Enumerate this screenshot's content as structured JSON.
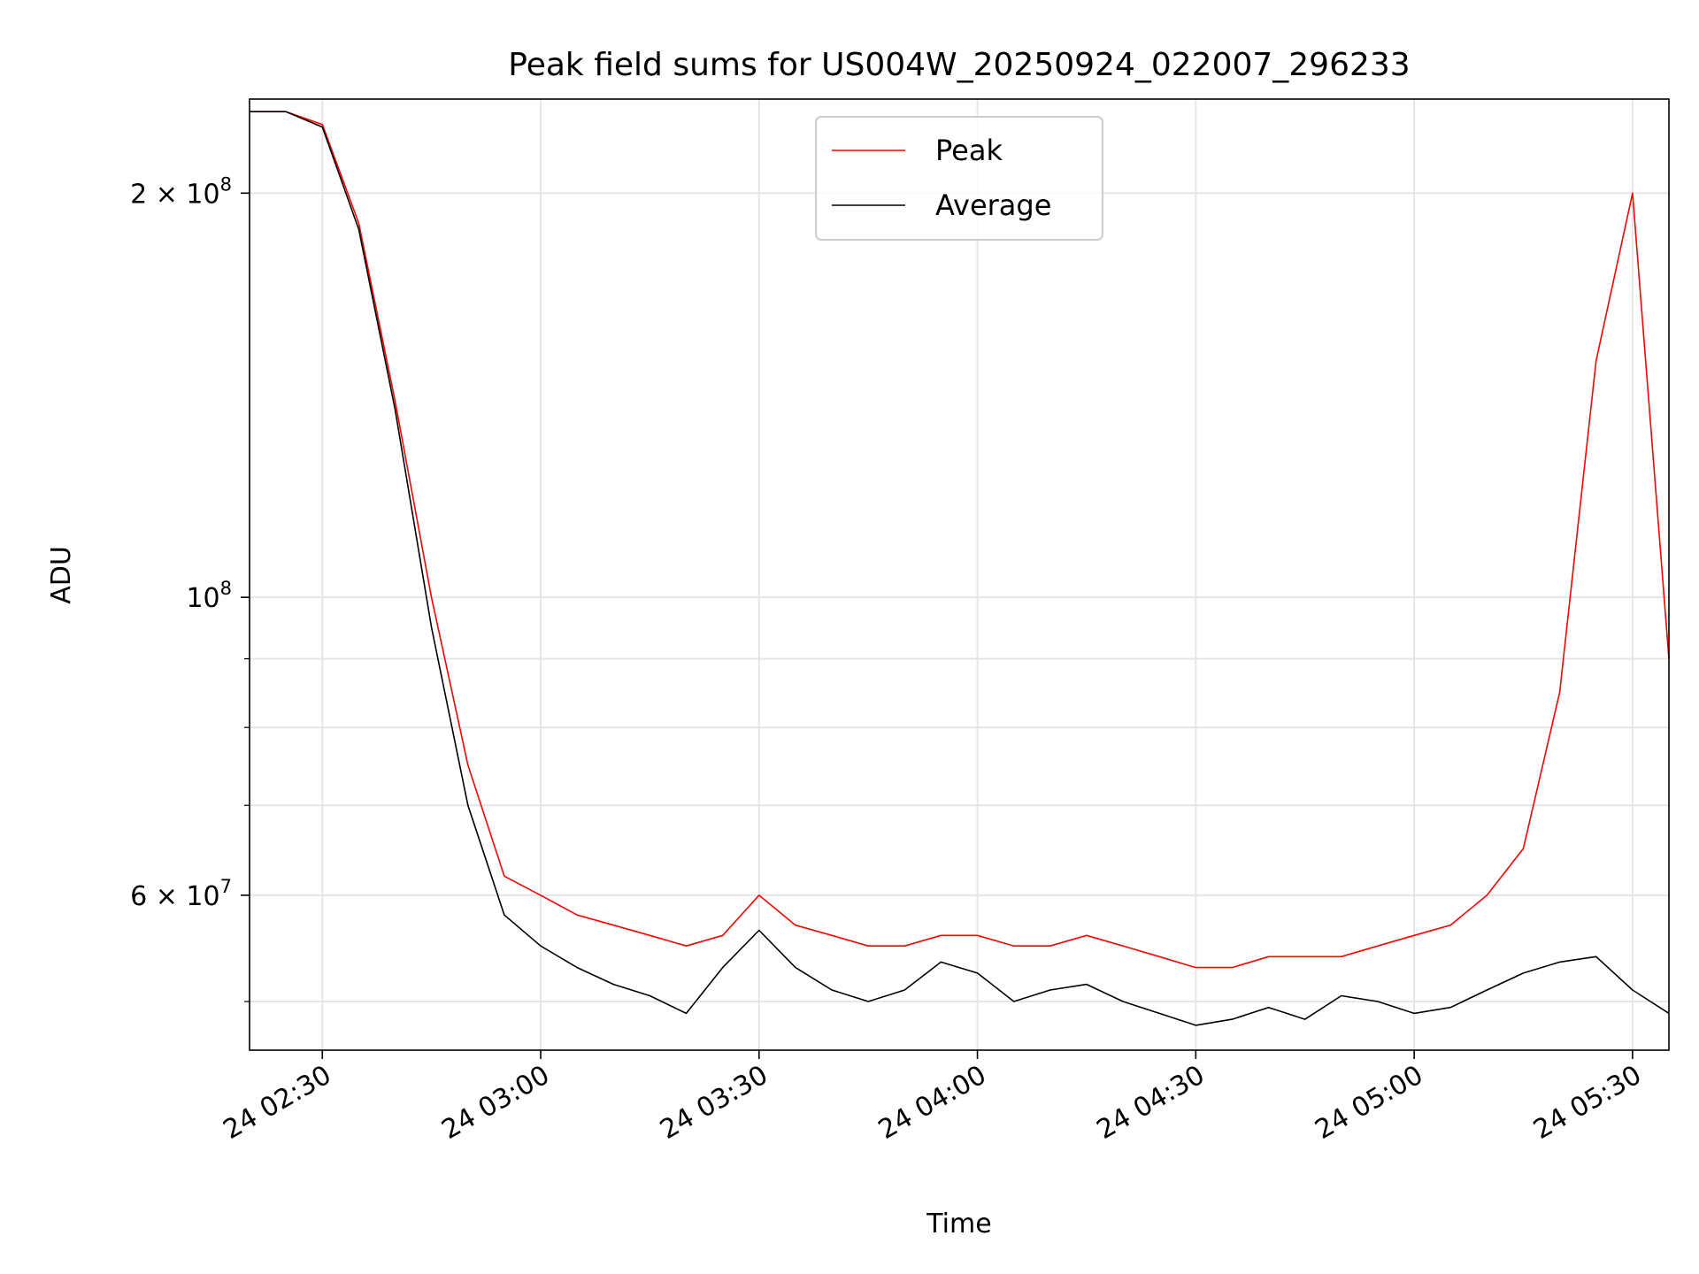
{
  "chart_data": {
    "type": "line",
    "title": "Peak field sums for US004W_20250924_022007_296233",
    "xlabel": "Time",
    "ylabel": "ADU",
    "y_scale": "log",
    "grid": true,
    "legend_position": "top-center",
    "xlim": [
      "2025-09-24 02:20",
      "2025-09-24 05:35"
    ],
    "ylim": [
      46000000,
      235000000
    ],
    "x_ticks": [
      {
        "value": "2025-09-24 02:30",
        "label": "24 02:30"
      },
      {
        "value": "2025-09-24 03:00",
        "label": "24 03:00"
      },
      {
        "value": "2025-09-24 03:30",
        "label": "24 03:30"
      },
      {
        "value": "2025-09-24 04:00",
        "label": "24 04:00"
      },
      {
        "value": "2025-09-24 04:30",
        "label": "24 04:30"
      },
      {
        "value": "2025-09-24 05:00",
        "label": "24 05:00"
      },
      {
        "value": "2025-09-24 05:30",
        "label": "24 05:30"
      }
    ],
    "y_major_ticks": [
      {
        "value": 60000000,
        "base": "6",
        "sep": "×",
        "pow": "10",
        "exp": "7"
      },
      {
        "value": 100000000,
        "base": "",
        "sep": "",
        "pow": "10",
        "exp": "8"
      },
      {
        "value": 200000000,
        "base": "2",
        "sep": "×",
        "pow": "10",
        "exp": "8"
      }
    ],
    "y_minor_ticks": [
      50000000,
      70000000,
      80000000,
      90000000
    ],
    "series": [
      {
        "name": "Peak",
        "color": "#ff0000",
        "x": [
          "2025-09-24 02:20",
          "2025-09-24 02:25",
          "2025-09-24 02:30",
          "2025-09-24 02:35",
          "2025-09-24 02:40",
          "2025-09-24 02:45",
          "2025-09-24 02:50",
          "2025-09-24 02:55",
          "2025-09-24 03:00",
          "2025-09-24 03:05",
          "2025-09-24 03:10",
          "2025-09-24 03:15",
          "2025-09-24 03:20",
          "2025-09-24 03:25",
          "2025-09-24 03:30",
          "2025-09-24 03:35",
          "2025-09-24 03:40",
          "2025-09-24 03:45",
          "2025-09-24 03:50",
          "2025-09-24 03:55",
          "2025-09-24 04:00",
          "2025-09-24 04:05",
          "2025-09-24 04:10",
          "2025-09-24 04:15",
          "2025-09-24 04:20",
          "2025-09-24 04:25",
          "2025-09-24 04:30",
          "2025-09-24 04:35",
          "2025-09-24 04:40",
          "2025-09-24 04:45",
          "2025-09-24 04:50",
          "2025-09-24 04:55",
          "2025-09-24 05:00",
          "2025-09-24 05:05",
          "2025-09-24 05:10",
          "2025-09-24 05:15",
          "2025-09-24 05:20",
          "2025-09-24 05:25",
          "2025-09-24 05:30",
          "2025-09-24 05:35"
        ],
        "y": [
          230000000,
          230000000,
          225000000,
          190000000,
          140000000,
          100000000,
          75000000,
          62000000,
          60000000,
          58000000,
          57000000,
          56000000,
          55000000,
          56000000,
          60000000,
          57000000,
          56000000,
          55000000,
          55000000,
          56000000,
          56000000,
          55000000,
          55000000,
          56000000,
          55000000,
          54000000,
          53000000,
          53000000,
          54000000,
          54000000,
          54000000,
          55000000,
          56000000,
          57000000,
          60000000,
          65000000,
          85000000,
          150000000,
          200000000,
          90000000
        ]
      },
      {
        "name": "Average",
        "color": "#000000",
        "x": [
          "2025-09-24 02:20",
          "2025-09-24 02:25",
          "2025-09-24 02:30",
          "2025-09-24 02:35",
          "2025-09-24 02:40",
          "2025-09-24 02:45",
          "2025-09-24 02:50",
          "2025-09-24 02:55",
          "2025-09-24 03:00",
          "2025-09-24 03:05",
          "2025-09-24 03:10",
          "2025-09-24 03:15",
          "2025-09-24 03:20",
          "2025-09-24 03:25",
          "2025-09-24 03:30",
          "2025-09-24 03:35",
          "2025-09-24 03:40",
          "2025-09-24 03:45",
          "2025-09-24 03:50",
          "2025-09-24 03:55",
          "2025-09-24 04:00",
          "2025-09-24 04:05",
          "2025-09-24 04:10",
          "2025-09-24 04:15",
          "2025-09-24 04:20",
          "2025-09-24 04:25",
          "2025-09-24 04:30",
          "2025-09-24 04:35",
          "2025-09-24 04:40",
          "2025-09-24 04:45",
          "2025-09-24 04:50",
          "2025-09-24 04:55",
          "2025-09-24 05:00",
          "2025-09-24 05:05",
          "2025-09-24 05:10",
          "2025-09-24 05:15",
          "2025-09-24 05:20",
          "2025-09-24 05:25",
          "2025-09-24 05:30",
          "2025-09-24 05:35"
        ],
        "y": [
          230000000,
          230000000,
          224000000,
          188000000,
          138000000,
          95000000,
          70000000,
          58000000,
          55000000,
          53000000,
          51500000,
          50500000,
          49000000,
          53000000,
          56500000,
          53000000,
          51000000,
          50000000,
          51000000,
          53500000,
          52500000,
          50000000,
          51000000,
          51500000,
          50000000,
          49000000,
          48000000,
          48500000,
          49500000,
          48500000,
          50500000,
          50000000,
          49000000,
          49500000,
          51000000,
          52500000,
          53500000,
          54000000,
          51000000,
          49000000
        ]
      }
    ]
  }
}
